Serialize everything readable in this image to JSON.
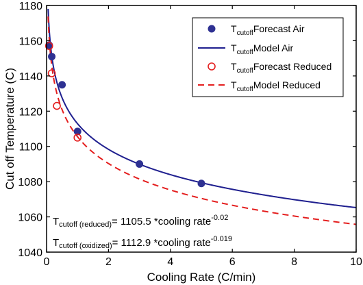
{
  "chart_data": {
    "type": "scatter",
    "xlabel": "Cooling Rate (C/min)",
    "ylabel": "Cut off Temperature (C)",
    "xlim": [
      0,
      10
    ],
    "ylim": [
      1040,
      1180
    ],
    "xticks": [
      "0",
      "2",
      "4",
      "6",
      "8",
      "10"
    ],
    "yticks": [
      "1040",
      "1060",
      "1080",
      "1100",
      "1120",
      "1140",
      "1160",
      "1180"
    ],
    "grid": false,
    "legend_position": "top-right",
    "series": [
      {
        "name": "Forecast Air",
        "legend_sub": "cutoff",
        "kind": "points",
        "marker": "filled-circle",
        "color": "#2e3192",
        "x": [
          0.083,
          0.167,
          0.5,
          1,
          3,
          5
        ],
        "y": [
          1157.5,
          1151,
          1135,
          1108.5,
          1090,
          1079
        ]
      },
      {
        "name": "Model Air",
        "legend_sub": "cutoff",
        "kind": "curve",
        "style": "solid",
        "color": "#1f1f8f",
        "coef": 1112.9,
        "exponent": -0.019
      },
      {
        "name": "Forecast Reduced",
        "legend_sub": "cutoff",
        "kind": "points",
        "marker": "open-circle",
        "color": "#e41e1e",
        "x": [
          0.083,
          0.167,
          0.333,
          1
        ],
        "y": [
          1157,
          1141.5,
          1123,
          1105
        ]
      },
      {
        "name": "Model Reduced",
        "legend_sub": "cutoff",
        "kind": "curve",
        "style": "dashed",
        "color": "#e41e1e",
        "coef": 1105.5,
        "exponent": -0.02
      }
    ],
    "annotations": [
      {
        "lead": "T",
        "sub": "cutoff (reduced)",
        "body": "= 1105.5 *cooling rate",
        "sup": "-0.02"
      },
      {
        "lead": "T",
        "sub": "cutoff (oxidized)",
        "body": "= 1112.9 *cooling rate",
        "sup": "-0.019"
      }
    ]
  }
}
